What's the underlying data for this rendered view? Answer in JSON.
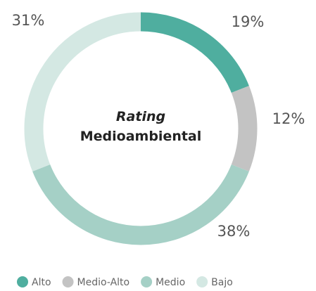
{
  "chart_data": {
    "type": "pie",
    "title": "Rating",
    "subtitle": "Medioambiental",
    "categories": [
      "Alto",
      "Medio-Alto",
      "Medio",
      "Bajo"
    ],
    "values": [
      19,
      12,
      38,
      31
    ],
    "value_labels": [
      "19%",
      "12%",
      "38%",
      "31%"
    ],
    "colors": [
      "#4fae9f",
      "#c3c3c3",
      "#a5d0c6",
      "#d4e8e3"
    ],
    "legend": "bottom"
  }
}
